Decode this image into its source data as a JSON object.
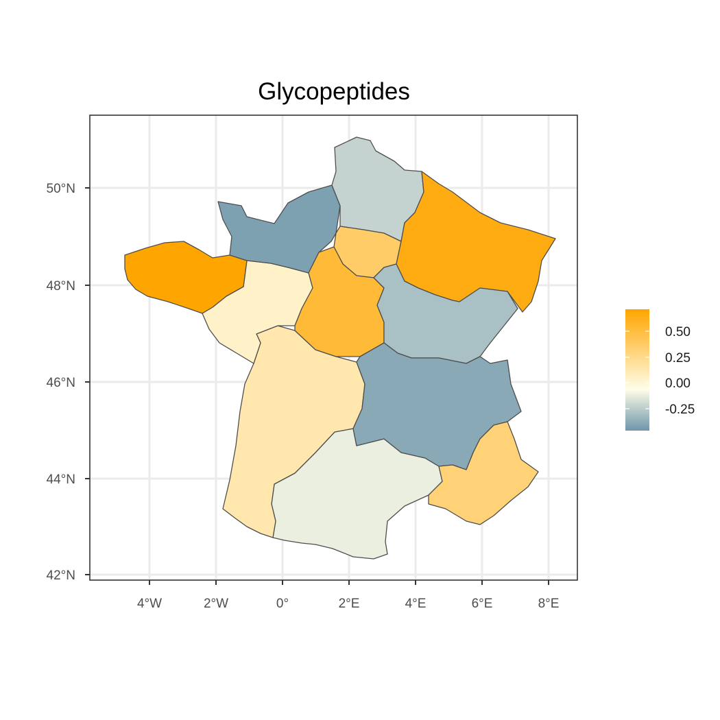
{
  "chart_data": {
    "type": "choropleth",
    "title": "Glycopeptides",
    "x_ticks": [
      "4°W",
      "2°W",
      "0°",
      "2°E",
      "4°E",
      "6°E",
      "8°E"
    ],
    "y_ticks": [
      "50°N",
      "48°N",
      "46°N",
      "44°N",
      "42°N"
    ],
    "xlim_deg": [
      -5.9,
      8.7
    ],
    "ylim_deg": [
      41.9,
      51.5
    ],
    "grid": true,
    "legend": {
      "position": "right",
      "labels": [
        "0.50",
        "0.25",
        "0.00",
        "-0.25"
      ],
      "min": -0.37,
      "max": 0.72,
      "colors": {
        "low": "#6e96ab",
        "mid": "#fffde8",
        "high": "#ffa500"
      }
    },
    "regions": [
      {
        "name": "Hauts-de-France",
        "value": -0.15
      },
      {
        "name": "Normandie",
        "value": -0.33
      },
      {
        "name": "Ile-de-France",
        "value": 0.4
      },
      {
        "name": "Grand Est",
        "value": 0.66
      },
      {
        "name": "Bretagne",
        "value": 0.72
      },
      {
        "name": "Pays de la Loire",
        "value": 0.1
      },
      {
        "name": "Centre-Val de Loire",
        "value": 0.55
      },
      {
        "name": "Bourgogne-Franche-Comte",
        "value": -0.22
      },
      {
        "name": "Nouvelle-Aquitaine",
        "value": 0.18
      },
      {
        "name": "Auvergne-Rhone-Alpes",
        "value": -0.3
      },
      {
        "name": "Occitanie",
        "value": -0.05
      },
      {
        "name": "Provence-Alpes-Cote d'Azur",
        "value": 0.35
      }
    ]
  }
}
